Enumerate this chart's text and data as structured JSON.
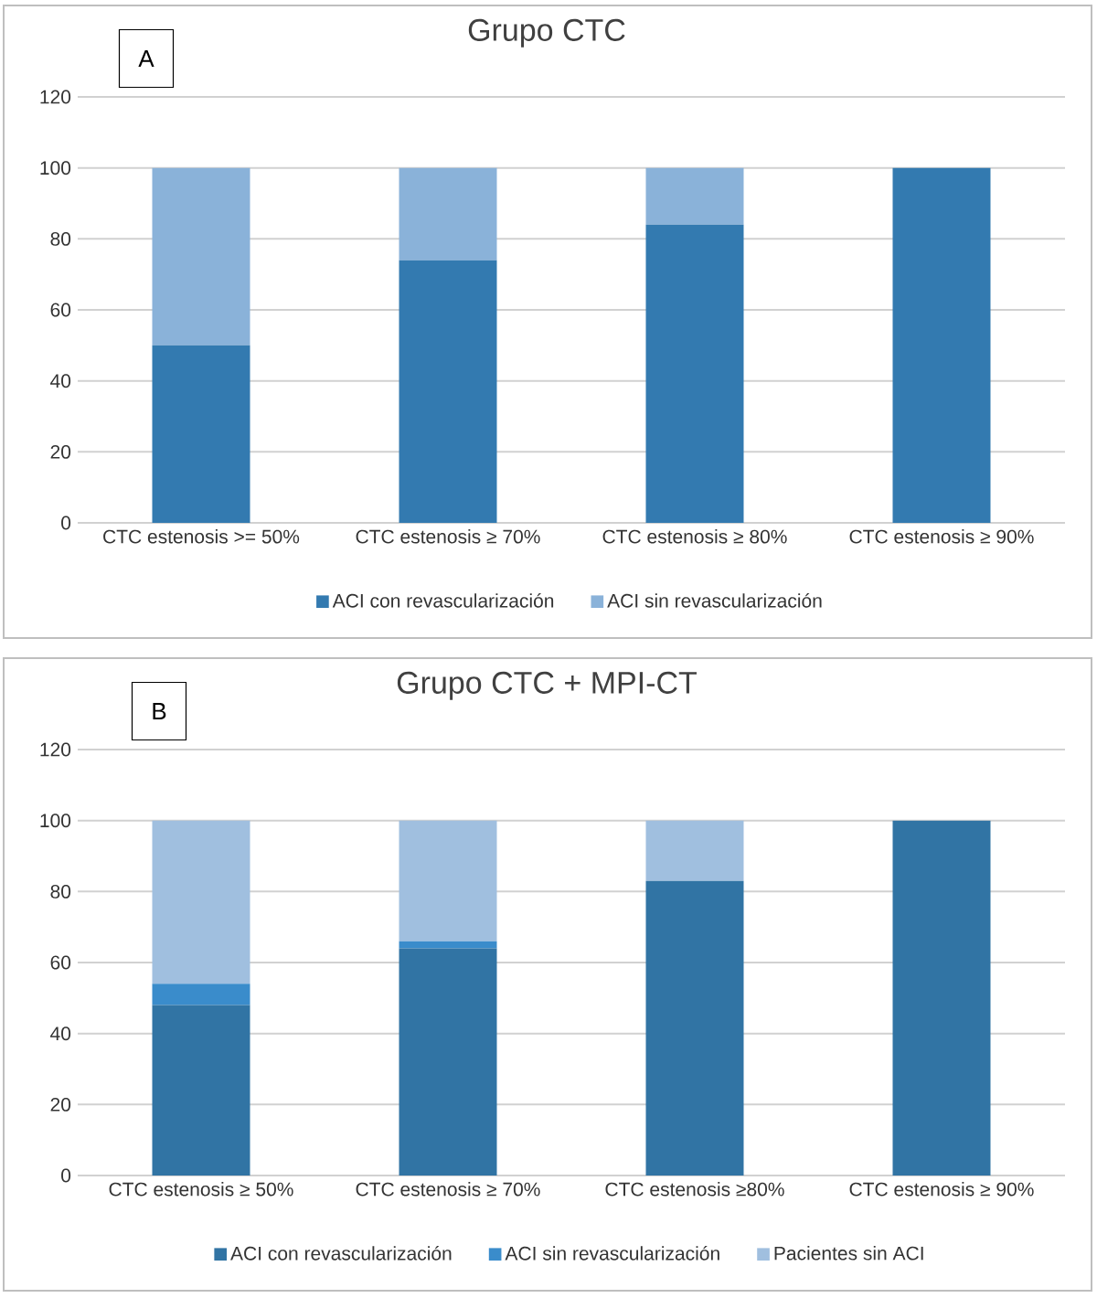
{
  "chart_data": [
    {
      "type": "bar",
      "stacked": true,
      "title": "Grupo CTC",
      "annotations": [
        "A"
      ],
      "categories": [
        "CTC estenosis >= 50%",
        "CTC estenosis ≥ 70%",
        "CTC estenosis ≥ 80%",
        "CTC estenosis ≥ 90%"
      ],
      "series": [
        {
          "name": "ACI con revascularización",
          "color": "#337ab0",
          "values": [
            50,
            74,
            84,
            100
          ]
        },
        {
          "name": "ACI sin revascularización",
          "color": "#8ab2d9",
          "values": [
            50,
            26,
            16,
            0
          ]
        }
      ],
      "ylim": [
        0,
        120
      ],
      "yticks": [
        0,
        20,
        40,
        60,
        80,
        100,
        120
      ],
      "grid": "y",
      "legend": "bottom"
    },
    {
      "type": "bar",
      "stacked": true,
      "title": "Grupo CTC + MPI-CT",
      "annotations": [
        "B"
      ],
      "categories": [
        "CTC estenosis ≥ 50%",
        "CTC estenosis ≥ 70%",
        "CTC estenosis ≥80%",
        "CTC estenosis ≥ 90%"
      ],
      "series": [
        {
          "name": "ACI con revascularización",
          "color": "#3174a4",
          "values": [
            48,
            64,
            83,
            100
          ]
        },
        {
          "name": "ACI sin revascularización",
          "color": "#3a8ccb",
          "values": [
            6,
            2,
            0,
            0
          ]
        },
        {
          "name": "Pacientes sin ACI",
          "color": "#a0bfdf",
          "values": [
            46,
            34,
            17,
            0
          ]
        }
      ],
      "ylim": [
        0,
        120
      ],
      "yticks": [
        0,
        20,
        40,
        60,
        80,
        100,
        120
      ],
      "grid": "y",
      "legend": "bottom"
    }
  ]
}
